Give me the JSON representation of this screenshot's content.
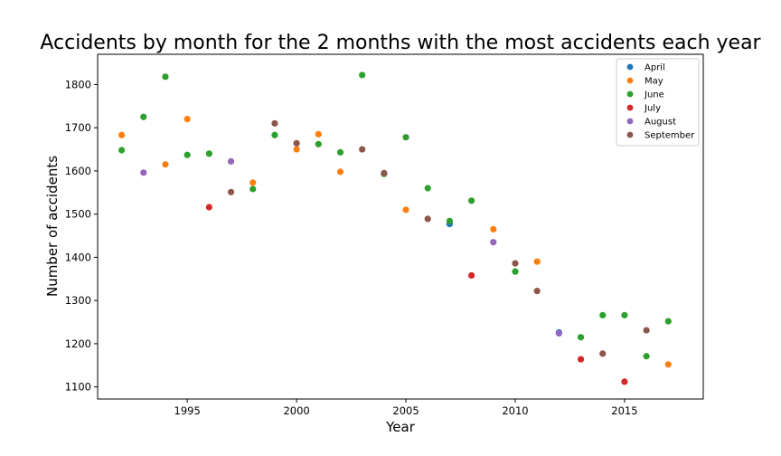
{
  "chart_data": {
    "type": "scatter",
    "title": "Accidents by month for the 2 months with the most accidents each year",
    "xlabel": "Year",
    "ylabel": "Number of accidents",
    "xlim": [
      1990.9,
      2018.6
    ],
    "ylim": [
      1072,
      1870
    ],
    "x_ticks": [
      1995,
      2000,
      2005,
      2010,
      2015
    ],
    "y_ticks": [
      1100,
      1200,
      1300,
      1400,
      1500,
      1600,
      1700,
      1800
    ],
    "grid": false,
    "legend_position": "top-right",
    "series": [
      {
        "name": "April",
        "color": "#1f77b4",
        "points": [
          [
            2007,
            1477
          ],
          [
            2012,
            1226
          ]
        ]
      },
      {
        "name": "May",
        "color": "#ff7f0e",
        "points": [
          [
            1992,
            1683
          ],
          [
            1994,
            1615
          ],
          [
            1995,
            1720
          ],
          [
            1998,
            1573
          ],
          [
            2000,
            1650
          ],
          [
            2001,
            1685
          ],
          [
            2002,
            1598
          ],
          [
            2005,
            1510
          ],
          [
            2009,
            1465
          ],
          [
            2011,
            1390
          ],
          [
            2017,
            1152
          ]
        ]
      },
      {
        "name": "June",
        "color": "#2ca02c",
        "points": [
          [
            1992,
            1648
          ],
          [
            1993,
            1725
          ],
          [
            1994,
            1818
          ],
          [
            1995,
            1637
          ],
          [
            1996,
            1640
          ],
          [
            1998,
            1558
          ],
          [
            1999,
            1683
          ],
          [
            2001,
            1662
          ],
          [
            2002,
            1643
          ],
          [
            2003,
            1822
          ],
          [
            2004,
            1593
          ],
          [
            2005,
            1678
          ],
          [
            2006,
            1560
          ],
          [
            2007,
            1484
          ],
          [
            2008,
            1531
          ],
          [
            2010,
            1367
          ],
          [
            2013,
            1215
          ],
          [
            2014,
            1266
          ],
          [
            2015,
            1266
          ],
          [
            2016,
            1171
          ],
          [
            2017,
            1252
          ]
        ]
      },
      {
        "name": "July",
        "color": "#d62728",
        "points": [
          [
            1996,
            1516
          ],
          [
            2008,
            1358
          ],
          [
            2013,
            1164
          ],
          [
            2015,
            1112
          ]
        ]
      },
      {
        "name": "August",
        "color": "#9467bd",
        "points": [
          [
            1993,
            1596
          ],
          [
            1997,
            1622
          ],
          [
            2009,
            1435
          ],
          [
            2012,
            1224
          ]
        ]
      },
      {
        "name": "September",
        "color": "#8c564b",
        "points": [
          [
            1997,
            1551
          ],
          [
            1999,
            1710
          ],
          [
            2000,
            1664
          ],
          [
            2003,
            1650
          ],
          [
            2004,
            1595
          ],
          [
            2006,
            1489
          ],
          [
            2010,
            1386
          ],
          [
            2011,
            1322
          ],
          [
            2014,
            1177
          ],
          [
            2016,
            1231
          ]
        ]
      }
    ]
  }
}
